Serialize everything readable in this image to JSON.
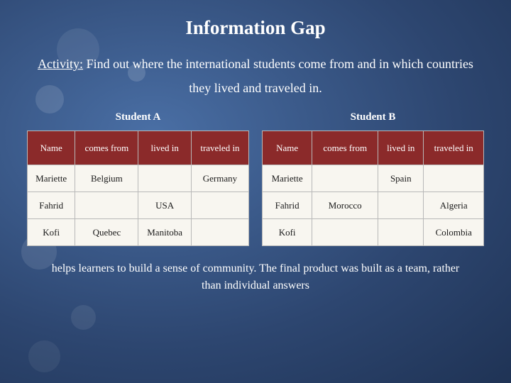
{
  "title": "Information Gap",
  "activity": {
    "label": "Activity:",
    "text": " Find out where the international students come from and in which countries they lived and traveled in."
  },
  "tables": {
    "columns": [
      "Name",
      "comes from",
      "lived in",
      "traveled in"
    ],
    "studentA": {
      "title": "Student A",
      "rows": [
        [
          "Mariette",
          "Belgium",
          "",
          "Germany"
        ],
        [
          "Fahrid",
          "",
          "USA",
          ""
        ],
        [
          "Kofi",
          "Quebec",
          "Manitoba",
          ""
        ]
      ]
    },
    "studentB": {
      "title": "Student B",
      "rows": [
        [
          "Mariette",
          "",
          "Spain",
          ""
        ],
        [
          "Fahrid",
          "Morocco",
          "",
          "Algeria"
        ],
        [
          "Kofi",
          "",
          "",
          "Colombia"
        ]
      ]
    }
  },
  "footer": "helps learners to build a sense of community. The final product was built as a team, rather than individual answers",
  "colors": {
    "header_bg": "#8b2a2a",
    "header_text": "#ffffff",
    "cell_bg": "#f8f6f0",
    "cell_border": "#b8b8b8",
    "page_text": "#ffffff"
  }
}
